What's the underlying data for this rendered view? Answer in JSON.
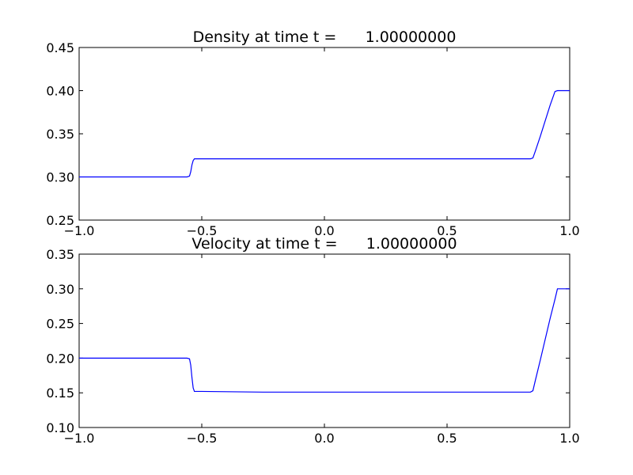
{
  "chart_data": [
    {
      "type": "line",
      "title": "Density at time t =      1.00000000",
      "xlabel": "",
      "ylabel": "",
      "xlim": [
        -1.0,
        1.0
      ],
      "ylim": [
        0.25,
        0.45
      ],
      "xticks": [
        "−1.0",
        "−0.5",
        "0.0",
        "0.5",
        "1.0"
      ],
      "xtick_values": [
        -1.0,
        -0.5,
        0.0,
        0.5,
        1.0
      ],
      "yticks": [
        "0.25",
        "0.30",
        "0.35",
        "0.40",
        "0.45"
      ],
      "ytick_values": [
        0.25,
        0.3,
        0.35,
        0.4,
        0.45
      ],
      "grid": false,
      "color": "#0000ff",
      "series": [
        {
          "x": [
            -1.0,
            -0.56,
            -0.55,
            -0.545,
            -0.54,
            -0.535,
            -0.53,
            -0.5,
            0.0,
            0.5,
            0.84,
            0.85,
            0.86,
            0.88,
            0.9,
            0.92,
            0.94,
            0.95,
            0.97,
            1.0
          ],
          "values": [
            0.3,
            0.3,
            0.301,
            0.306,
            0.314,
            0.319,
            0.321,
            0.321,
            0.321,
            0.321,
            0.321,
            0.322,
            0.33,
            0.347,
            0.365,
            0.383,
            0.399,
            0.4,
            0.4,
            0.4
          ]
        }
      ]
    },
    {
      "type": "line",
      "title": "Velocity at time t =      1.00000000",
      "xlabel": "",
      "ylabel": "",
      "xlim": [
        -1.0,
        1.0
      ],
      "ylim": [
        0.1,
        0.35
      ],
      "xticks": [
        "−1.0",
        "−0.5",
        "0.0",
        "0.5",
        "1.0"
      ],
      "xtick_values": [
        -1.0,
        -0.5,
        0.0,
        0.5,
        1.0
      ],
      "yticks": [
        "0.10",
        "0.15",
        "0.20",
        "0.25",
        "0.30",
        "0.35"
      ],
      "ytick_values": [
        0.1,
        0.15,
        0.2,
        0.25,
        0.3,
        0.35
      ],
      "grid": false,
      "color": "#0000ff",
      "series": [
        {
          "x": [
            -1.0,
            -0.56,
            -0.55,
            -0.545,
            -0.54,
            -0.535,
            -0.53,
            -0.5,
            -0.25,
            0.0,
            0.5,
            0.84,
            0.85,
            0.86,
            0.88,
            0.9,
            0.92,
            0.94,
            0.95,
            0.97,
            1.0
          ],
          "values": [
            0.2,
            0.2,
            0.199,
            0.19,
            0.172,
            0.157,
            0.152,
            0.152,
            0.151,
            0.151,
            0.151,
            0.151,
            0.153,
            0.168,
            0.197,
            0.227,
            0.257,
            0.285,
            0.3,
            0.3,
            0.3
          ]
        }
      ]
    }
  ]
}
